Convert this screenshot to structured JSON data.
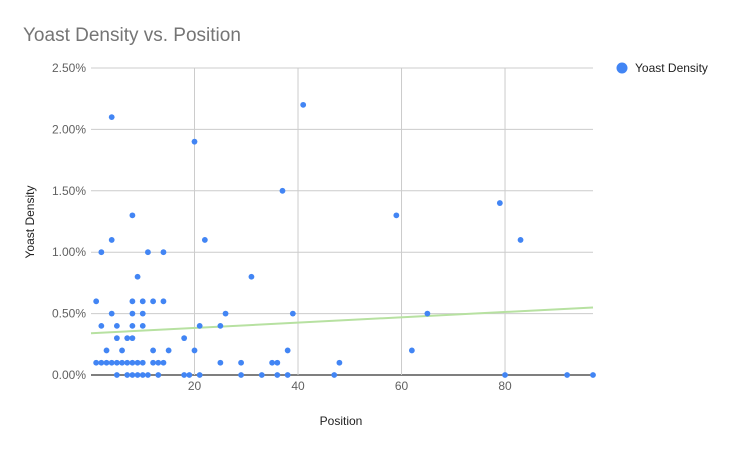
{
  "chart_data": {
    "type": "scatter",
    "title": "Yoast Density vs. Position",
    "xlabel": "Position",
    "ylabel": "Yoast Density",
    "xlim": [
      0,
      97
    ],
    "ylim": [
      0,
      2.5
    ],
    "x_ticks": [
      20,
      40,
      60,
      80
    ],
    "x_tick_labels": [
      "20",
      "40",
      "60",
      "80"
    ],
    "y_ticks": [
      0,
      0.5,
      1.0,
      1.5,
      2.0,
      2.5
    ],
    "y_tick_labels": [
      "0.00%",
      "0.50%",
      "1.00%",
      "1.50%",
      "2.00%",
      "2.50%"
    ],
    "grid": true,
    "legend_position": "top-right",
    "series": [
      {
        "name": "Yoast Density",
        "color": "#4285f4",
        "points": [
          [
            1,
            0.6
          ],
          [
            1,
            0.1
          ],
          [
            2,
            0.4
          ],
          [
            2,
            0.1
          ],
          [
            2,
            1.0
          ],
          [
            3,
            0.2
          ],
          [
            3,
            0.1
          ],
          [
            4,
            2.1
          ],
          [
            4,
            1.1
          ],
          [
            4,
            0.5
          ],
          [
            4,
            0.1
          ],
          [
            5,
            0.4
          ],
          [
            5,
            0.3
          ],
          [
            5,
            0.1
          ],
          [
            5,
            0.0
          ],
          [
            6,
            0.2
          ],
          [
            6,
            0.1
          ],
          [
            7,
            0.3
          ],
          [
            7,
            0.1
          ],
          [
            7,
            0.0
          ],
          [
            8,
            1.3
          ],
          [
            8,
            0.6
          ],
          [
            8,
            0.5
          ],
          [
            8,
            0.4
          ],
          [
            8,
            0.3
          ],
          [
            8,
            0.1
          ],
          [
            8,
            0.0
          ],
          [
            9,
            0.8
          ],
          [
            9,
            0.1
          ],
          [
            9,
            0.0
          ],
          [
            10,
            0.6
          ],
          [
            10,
            0.5
          ],
          [
            10,
            0.4
          ],
          [
            10,
            0.1
          ],
          [
            10,
            0.0
          ],
          [
            11,
            1.0
          ],
          [
            11,
            0.0
          ],
          [
            12,
            0.6
          ],
          [
            12,
            0.2
          ],
          [
            12,
            0.1
          ],
          [
            13,
            0.1
          ],
          [
            13,
            0.0
          ],
          [
            14,
            1.0
          ],
          [
            14,
            0.6
          ],
          [
            14,
            0.1
          ],
          [
            15,
            0.2
          ],
          [
            18,
            0.3
          ],
          [
            18,
            0.0
          ],
          [
            19,
            0.0
          ],
          [
            20,
            1.9
          ],
          [
            20,
            0.2
          ],
          [
            21,
            0.4
          ],
          [
            21,
            0.0
          ],
          [
            22,
            1.1
          ],
          [
            25,
            0.4
          ],
          [
            25,
            0.1
          ],
          [
            26,
            0.5
          ],
          [
            29,
            0.1
          ],
          [
            29,
            0.0
          ],
          [
            31,
            0.8
          ],
          [
            33,
            0.0
          ],
          [
            35,
            0.1
          ],
          [
            36,
            0.1
          ],
          [
            36,
            0.0
          ],
          [
            37,
            1.5
          ],
          [
            38,
            0.2
          ],
          [
            38,
            0.0
          ],
          [
            39,
            0.5
          ],
          [
            41,
            2.2
          ],
          [
            47,
            0.0
          ],
          [
            48,
            0.1
          ],
          [
            59,
            1.3
          ],
          [
            62,
            0.2
          ],
          [
            65,
            0.5
          ],
          [
            79,
            1.4
          ],
          [
            80,
            0.0
          ],
          [
            83,
            1.1
          ],
          [
            92,
            0.0
          ],
          [
            97,
            0.0
          ]
        ]
      }
    ],
    "trendline": {
      "type": "linear",
      "color": "#b7e1a1",
      "start": [
        0,
        0.34
      ],
      "end": [
        97,
        0.55
      ]
    }
  }
}
